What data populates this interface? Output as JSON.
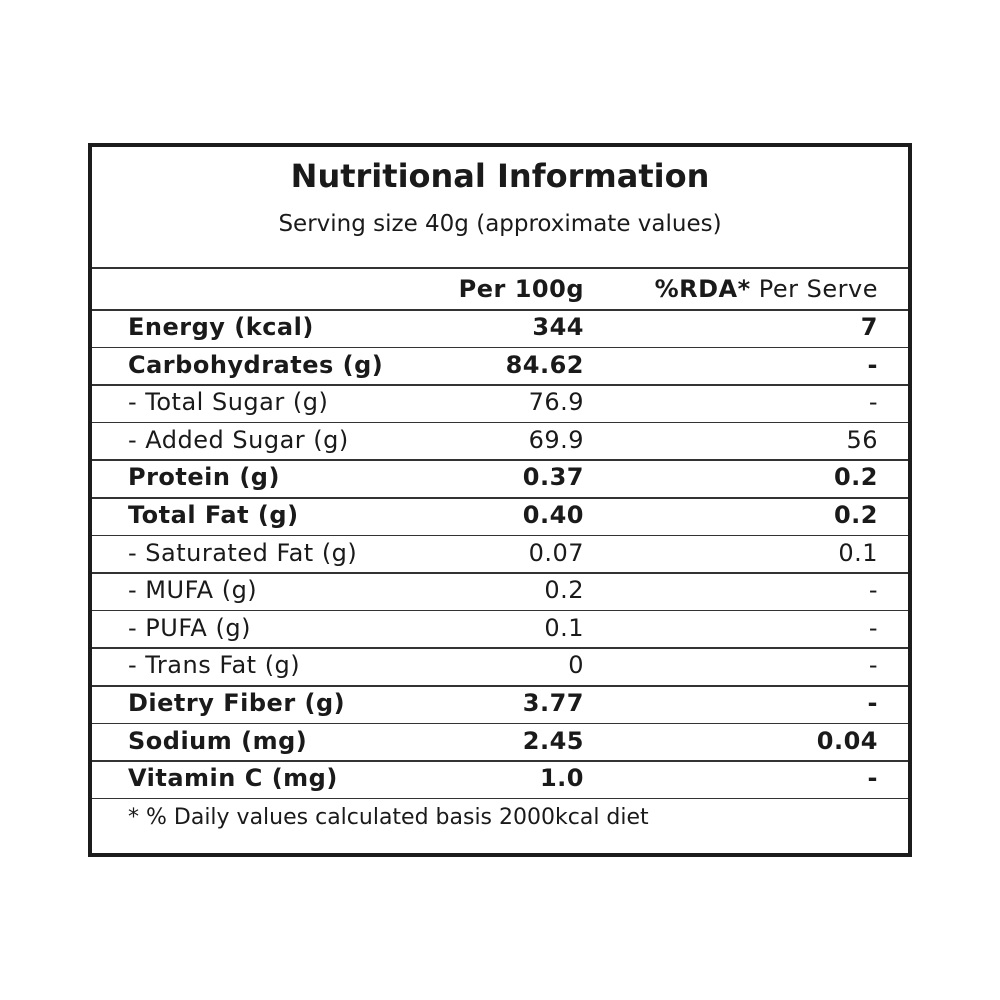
{
  "header": {
    "title": "Nutritional  Information",
    "subtitle": "Serving size 40g  (approximate values)"
  },
  "table": {
    "columns": [
      "Per 100g",
      {
        "strong": "%RDA*",
        "rest": "Per Serve"
      }
    ],
    "rows": [
      {
        "cells": [
          "Energy (kcal)",
          "344",
          "7"
        ],
        "bold": true
      },
      {
        "cells": [
          "Carbohydrates (g)",
          "84.62",
          "-"
        ],
        "bold": true
      },
      {
        "cells": [
          "- Total Sugar (g)",
          "76.9",
          "-"
        ],
        "bold": false
      },
      {
        "cells": [
          "- Added Sugar (g)",
          "69.9",
          "56"
        ],
        "bold": false
      },
      {
        "cells": [
          "Protein (g)",
          "0.37",
          "0.2"
        ],
        "bold": true
      },
      {
        "cells": [
          "Total Fat (g)",
          "0.40",
          "0.2"
        ],
        "bold": true
      },
      {
        "cells": [
          "- Saturated Fat (g)",
          "0.07",
          "0.1"
        ],
        "bold": false
      },
      {
        "cells": [
          "- MUFA (g)",
          "0.2",
          "-"
        ],
        "bold": false
      },
      {
        "cells": [
          "- PUFA (g)",
          "0.1",
          "-"
        ],
        "bold": false
      },
      {
        "cells": [
          "- Trans Fat (g)",
          "0",
          "-"
        ],
        "bold": false
      },
      {
        "cells": [
          "Dietry Fiber (g)",
          "3.77",
          "-"
        ],
        "bold": true
      },
      {
        "cells": [
          "Sodium (mg)",
          "2.45",
          "0.04"
        ],
        "bold": true
      },
      {
        "cells": [
          "Vitamin C (mg)",
          "1.0",
          "-"
        ],
        "bold": true
      }
    ],
    "footnote": "* % Daily values calculated basis 2000kcal diet"
  }
}
